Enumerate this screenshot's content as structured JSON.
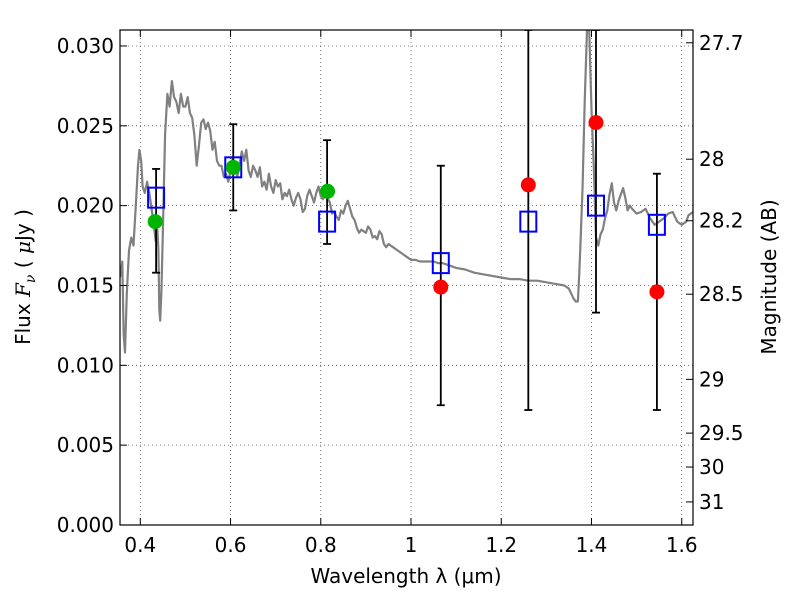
{
  "chart_data": {
    "type": "scatter",
    "xlabel": "Wavelength  λ (μm)",
    "ylabel": "Flux  F_ν  ( μJy )",
    "y2label": "Magnitude (AB)",
    "xlim": [
      0.355,
      1.625
    ],
    "ylim": [
      0.0,
      0.031
    ],
    "grid": true,
    "x_ticks": [
      {
        "value": 0.4,
        "label": "0.4"
      },
      {
        "value": 0.6,
        "label": "0.6"
      },
      {
        "value": 0.8,
        "label": "0.8"
      },
      {
        "value": 1.0,
        "label": "1"
      },
      {
        "value": 1.2,
        "label": "1.2"
      },
      {
        "value": 1.4,
        "label": "1.4"
      },
      {
        "value": 1.6,
        "label": "1.6"
      }
    ],
    "y_ticks": [
      {
        "value": 0.0,
        "label": "0.000"
      },
      {
        "value": 0.005,
        "label": "0.005"
      },
      {
        "value": 0.01,
        "label": "0.010"
      },
      {
        "value": 0.015,
        "label": "0.015"
      },
      {
        "value": 0.02,
        "label": "0.020"
      },
      {
        "value": 0.025,
        "label": "0.025"
      },
      {
        "value": 0.03,
        "label": "0.030"
      }
    ],
    "y2_ticks": [
      {
        "mag": 27.7,
        "label": "27.7"
      },
      {
        "mag": 28,
        "label": "28"
      },
      {
        "mag": 28.2,
        "label": "28.2"
      },
      {
        "mag": 28.5,
        "label": "28.5"
      },
      {
        "mag": 29,
        "label": "29"
      },
      {
        "mag": 29.5,
        "label": "29.5"
      },
      {
        "mag": 30,
        "label": "30"
      },
      {
        "mag": 31,
        "label": "31"
      }
    ],
    "series": [
      {
        "kind": "line",
        "color": "#808080",
        "points": [
          [
            0.355,
            0.0155
          ],
          [
            0.36,
            0.0165
          ],
          [
            0.363,
            0.012
          ],
          [
            0.366,
            0.0108
          ],
          [
            0.37,
            0.0145
          ],
          [
            0.375,
            0.0172
          ],
          [
            0.38,
            0.018
          ],
          [
            0.385,
            0.0175
          ],
          [
            0.39,
            0.02
          ],
          [
            0.395,
            0.0225
          ],
          [
            0.398,
            0.0235
          ],
          [
            0.402,
            0.0228
          ],
          [
            0.405,
            0.0212
          ],
          [
            0.41,
            0.0208
          ],
          [
            0.415,
            0.0215
          ],
          [
            0.42,
            0.0208
          ],
          [
            0.425,
            0.0198
          ],
          [
            0.43,
            0.0188
          ],
          [
            0.434,
            0.0178
          ],
          [
            0.438,
            0.0185
          ],
          [
            0.44,
            0.0172
          ],
          [
            0.442,
            0.0135
          ],
          [
            0.444,
            0.0128
          ],
          [
            0.447,
            0.0148
          ],
          [
            0.45,
            0.0185
          ],
          [
            0.455,
            0.0245
          ],
          [
            0.46,
            0.027
          ],
          [
            0.465,
            0.0262
          ],
          [
            0.47,
            0.0278
          ],
          [
            0.475,
            0.0268
          ],
          [
            0.48,
            0.0265
          ],
          [
            0.485,
            0.0258
          ],
          [
            0.49,
            0.027
          ],
          [
            0.495,
            0.0262
          ],
          [
            0.5,
            0.0262
          ],
          [
            0.505,
            0.0268
          ],
          [
            0.51,
            0.0258
          ],
          [
            0.515,
            0.0255
          ],
          [
            0.52,
            0.0244
          ],
          [
            0.525,
            0.0225
          ],
          [
            0.53,
            0.0238
          ],
          [
            0.535,
            0.0252
          ],
          [
            0.54,
            0.0254
          ],
          [
            0.545,
            0.0248
          ],
          [
            0.55,
            0.0252
          ],
          [
            0.555,
            0.0247
          ],
          [
            0.56,
            0.0235
          ],
          [
            0.565,
            0.024
          ],
          [
            0.57,
            0.0228
          ],
          [
            0.575,
            0.0225
          ],
          [
            0.58,
            0.0225
          ],
          [
            0.585,
            0.0218
          ],
          [
            0.59,
            0.022
          ],
          [
            0.595,
            0.0215
          ],
          [
            0.6,
            0.0222
          ],
          [
            0.605,
            0.023
          ],
          [
            0.61,
            0.0224
          ],
          [
            0.615,
            0.0218
          ],
          [
            0.62,
            0.0226
          ],
          [
            0.625,
            0.0234
          ],
          [
            0.63,
            0.0228
          ],
          [
            0.635,
            0.0235
          ],
          [
            0.64,
            0.0222
          ],
          [
            0.645,
            0.0218
          ],
          [
            0.65,
            0.0225
          ],
          [
            0.655,
            0.0222
          ],
          [
            0.66,
            0.0218
          ],
          [
            0.665,
            0.0224
          ],
          [
            0.67,
            0.0212
          ],
          [
            0.675,
            0.0215
          ],
          [
            0.68,
            0.021
          ],
          [
            0.685,
            0.022
          ],
          [
            0.69,
            0.0212
          ],
          [
            0.695,
            0.0208
          ],
          [
            0.7,
            0.0216
          ],
          [
            0.705,
            0.0212
          ],
          [
            0.71,
            0.0214
          ],
          [
            0.715,
            0.0204
          ],
          [
            0.72,
            0.0208
          ],
          [
            0.725,
            0.0206
          ],
          [
            0.73,
            0.021
          ],
          [
            0.735,
            0.0204
          ],
          [
            0.74,
            0.02
          ],
          [
            0.745,
            0.0205
          ],
          [
            0.75,
            0.0208
          ],
          [
            0.755,
            0.0204
          ],
          [
            0.76,
            0.0196
          ],
          [
            0.765,
            0.0198
          ],
          [
            0.77,
            0.0206
          ],
          [
            0.775,
            0.021
          ],
          [
            0.78,
            0.0206
          ],
          [
            0.785,
            0.0202
          ],
          [
            0.79,
            0.0208
          ],
          [
            0.795,
            0.0212
          ],
          [
            0.8,
            0.0206
          ],
          [
            0.805,
            0.0204
          ],
          [
            0.81,
            0.0208
          ],
          [
            0.815,
            0.0205
          ],
          [
            0.82,
            0.0202
          ],
          [
            0.825,
            0.0195
          ],
          [
            0.83,
            0.0196
          ],
          [
            0.835,
            0.0193
          ],
          [
            0.84,
            0.0191
          ],
          [
            0.845,
            0.0197
          ],
          [
            0.85,
            0.0195
          ],
          [
            0.855,
            0.02
          ],
          [
            0.86,
            0.0203
          ],
          [
            0.865,
            0.0198
          ],
          [
            0.87,
            0.0193
          ],
          [
            0.875,
            0.0191
          ],
          [
            0.88,
            0.0186
          ],
          [
            0.885,
            0.0183
          ],
          [
            0.89,
            0.0185
          ],
          [
            0.9,
            0.0183
          ],
          [
            0.905,
            0.0187
          ],
          [
            0.91,
            0.0185
          ],
          [
            0.915,
            0.018
          ],
          [
            0.92,
            0.0181
          ],
          [
            0.925,
            0.0179
          ],
          [
            0.93,
            0.0184
          ],
          [
            0.935,
            0.0182
          ],
          [
            0.94,
            0.0176
          ],
          [
            0.945,
            0.0174
          ],
          [
            0.95,
            0.0176
          ],
          [
            0.96,
            0.0174
          ],
          [
            0.97,
            0.0172
          ],
          [
            0.98,
            0.017
          ],
          [
            0.99,
            0.0168
          ],
          [
            1.0,
            0.0166
          ],
          [
            1.01,
            0.0166
          ],
          [
            1.02,
            0.0165
          ],
          [
            1.03,
            0.0165
          ],
          [
            1.04,
            0.0165
          ],
          [
            1.05,
            0.0165
          ],
          [
            1.06,
            0.0164
          ],
          [
            1.07,
            0.0164
          ],
          [
            1.08,
            0.0163
          ],
          [
            1.09,
            0.0162
          ],
          [
            1.1,
            0.0161
          ],
          [
            1.12,
            0.016
          ],
          [
            1.14,
            0.0158
          ],
          [
            1.16,
            0.0157
          ],
          [
            1.18,
            0.0156
          ],
          [
            1.2,
            0.0155
          ],
          [
            1.22,
            0.0154
          ],
          [
            1.24,
            0.0154
          ],
          [
            1.26,
            0.0153
          ],
          [
            1.28,
            0.0153
          ],
          [
            1.3,
            0.0152
          ],
          [
            1.32,
            0.0151
          ],
          [
            1.34,
            0.015
          ],
          [
            1.35,
            0.0148
          ],
          [
            1.36,
            0.0142
          ],
          [
            1.365,
            0.014
          ],
          [
            1.37,
            0.014
          ],
          [
            1.373,
            0.0158
          ],
          [
            1.376,
            0.018
          ],
          [
            1.38,
            0.021
          ],
          [
            1.385,
            0.0265
          ],
          [
            1.39,
            0.031
          ],
          [
            1.395,
            0.031
          ],
          [
            1.4,
            0.026
          ],
          [
            1.405,
            0.0226
          ],
          [
            1.41,
            0.018
          ],
          [
            1.415,
            0.0175
          ],
          [
            1.42,
            0.0182
          ],
          [
            1.425,
            0.0185
          ],
          [
            1.43,
            0.0192
          ],
          [
            1.435,
            0.0197
          ],
          [
            1.44,
            0.0207
          ],
          [
            1.445,
            0.0214
          ],
          [
            1.45,
            0.0202
          ],
          [
            1.455,
            0.0197
          ],
          [
            1.46,
            0.0203
          ],
          [
            1.465,
            0.0207
          ],
          [
            1.47,
            0.0211
          ],
          [
            1.475,
            0.0205
          ],
          [
            1.48,
            0.0197
          ],
          [
            1.485,
            0.02
          ],
          [
            1.49,
            0.0198
          ],
          [
            1.5,
            0.0195
          ],
          [
            1.51,
            0.0196
          ],
          [
            1.52,
            0.0198
          ],
          [
            1.53,
            0.0192
          ],
          [
            1.54,
            0.0188
          ],
          [
            1.55,
            0.019
          ],
          [
            1.56,
            0.0192
          ],
          [
            1.57,
            0.0195
          ],
          [
            1.58,
            0.0196
          ],
          [
            1.59,
            0.019
          ],
          [
            1.6,
            0.0188
          ],
          [
            1.61,
            0.019
          ],
          [
            1.615,
            0.0194
          ],
          [
            1.625,
            0.0196
          ]
        ]
      },
      {
        "kind": "errorbar",
        "color": "#000000",
        "points": [
          {
            "x": 0.435,
            "low": 0.0158,
            "high": 0.0223
          },
          {
            "x": 0.606,
            "low": 0.0197,
            "high": 0.0251
          },
          {
            "x": 0.814,
            "low": 0.0176,
            "high": 0.0241
          },
          {
            "x": 1.066,
            "low": 0.0075,
            "high": 0.0225
          },
          {
            "x": 1.26,
            "low": 0.0072,
            "high": 0.031
          },
          {
            "x": 1.41,
            "low": 0.0133,
            "high": 0.031
          },
          {
            "x": 1.545,
            "low": 0.0072,
            "high": 0.022
          }
        ]
      },
      {
        "kind": "open-square",
        "color": "#0000ff",
        "points": [
          [
            0.435,
            0.0205
          ],
          [
            0.606,
            0.0224
          ],
          [
            0.814,
            0.019
          ],
          [
            1.066,
            0.0164
          ],
          [
            1.26,
            0.019
          ],
          [
            1.41,
            0.02
          ],
          [
            1.545,
            0.0188
          ]
        ]
      },
      {
        "kind": "circle",
        "color": "#00b400",
        "points": [
          [
            0.433,
            0.019
          ],
          [
            0.606,
            0.0224
          ],
          [
            0.815,
            0.0209
          ]
        ]
      },
      {
        "kind": "circle",
        "color": "#ff0000",
        "points": [
          [
            1.066,
            0.0149
          ],
          [
            1.26,
            0.0213
          ],
          [
            1.41,
            0.0252
          ],
          [
            1.545,
            0.0146
          ]
        ]
      }
    ]
  }
}
